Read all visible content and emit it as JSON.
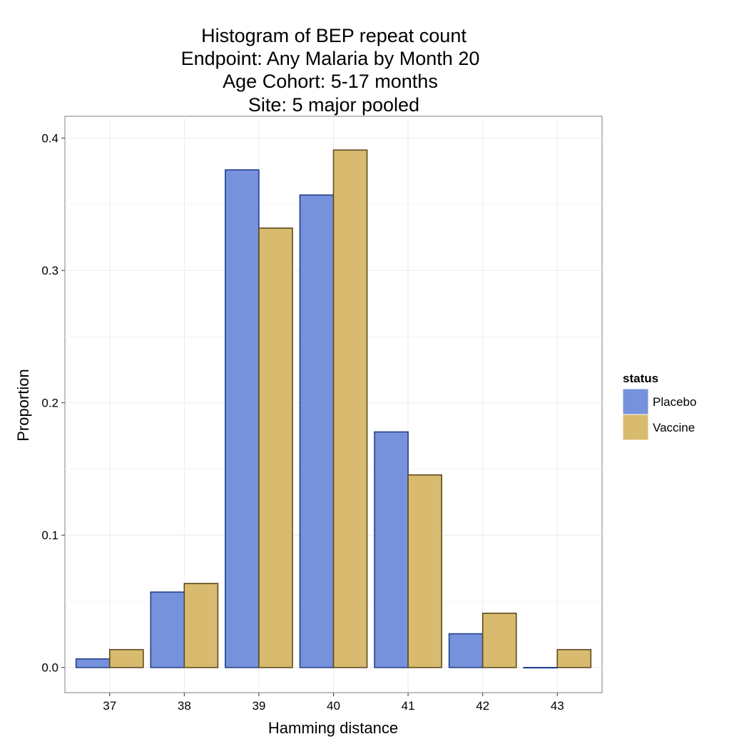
{
  "chart_data": {
    "type": "bar",
    "title_lines": [
      "Histogram of BEP repeat count",
      "Endpoint: Any Malaria by Month 20",
      "Age Cohort: 5-17 months",
      "Site: 5 major pooled"
    ],
    "xlabel": "Hamming distance",
    "ylabel": "Proportion",
    "categories": [
      "37",
      "38",
      "39",
      "40",
      "41",
      "42",
      "43"
    ],
    "yticks": [
      "0.0",
      "0.1",
      "0.2",
      "0.3",
      "0.4"
    ],
    "ylim": [
      -0.019,
      0.4165
    ],
    "grid": true,
    "legend": {
      "title": "status",
      "position": "right"
    },
    "series": [
      {
        "name": "Placebo",
        "color": "#7692dc",
        "border": "#213f88",
        "values": [
          0.0065,
          0.057,
          0.376,
          0.357,
          0.178,
          0.0255,
          0
        ]
      },
      {
        "name": "Vaccine",
        "color": "#d8bb6f",
        "border": "#5e4b1e",
        "values": [
          0.0135,
          0.0635,
          0.332,
          0.391,
          0.1455,
          0.041,
          0.0135
        ]
      }
    ]
  }
}
